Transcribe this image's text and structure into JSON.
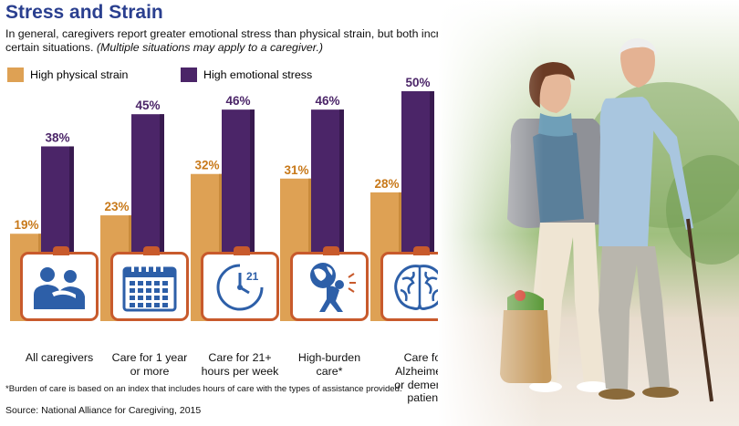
{
  "title": "Stress and Strain",
  "subtitle": "In general, caregivers report greater emotional stress than physical strain, but both increase for certain situations.",
  "subtitle_note": "(Multiple situations may apply to a caregiver.)",
  "footnote": "*Burden of care is based on an index that includes hours of care with the types of assistance provided.",
  "source": "Source: National Alliance for Caregiving, 2015",
  "colors": {
    "physical": "#dea154",
    "physical_dark": "#c98b3c",
    "emotional": "#4b2568",
    "emotional_dark": "#381a4f",
    "title": "#2a3f8f",
    "card_border": "#c85a2c",
    "icon_blue": "#2d5fa8"
  },
  "icons": [
    "people-hug-icon",
    "calendar-icon",
    "clock-21-icon",
    "globe-burden-icon",
    "brain-icon"
  ],
  "chart_data": {
    "type": "bar",
    "title": "Stress and Strain",
    "categories": [
      "All caregivers",
      "Care for 1 year or more",
      "Care for 21+ hours per week",
      "High-burden care*",
      "Care for Alzheimer's or dementia patient"
    ],
    "series": [
      {
        "name": "High physical strain",
        "values": [
          19,
          23,
          32,
          31,
          28
        ],
        "value_labels": [
          "19%",
          "23%",
          "32%",
          "31%",
          "28%"
        ]
      },
      {
        "name": "High emotional stress",
        "values": [
          38,
          45,
          46,
          46,
          50
        ],
        "value_labels": [
          "38%",
          "45%",
          "46%",
          "46%",
          "50%"
        ]
      }
    ],
    "legend_position": "top-left",
    "grid": false,
    "ylim": [
      0,
      50
    ]
  },
  "category_lines": [
    [
      "All caregivers"
    ],
    [
      "Care for 1 year",
      "or more"
    ],
    [
      "Care for 21+",
      "hours per week"
    ],
    [
      "High-burden",
      "care*"
    ],
    [
      "Care for Alzheimer's",
      "or dementia patient"
    ]
  ]
}
